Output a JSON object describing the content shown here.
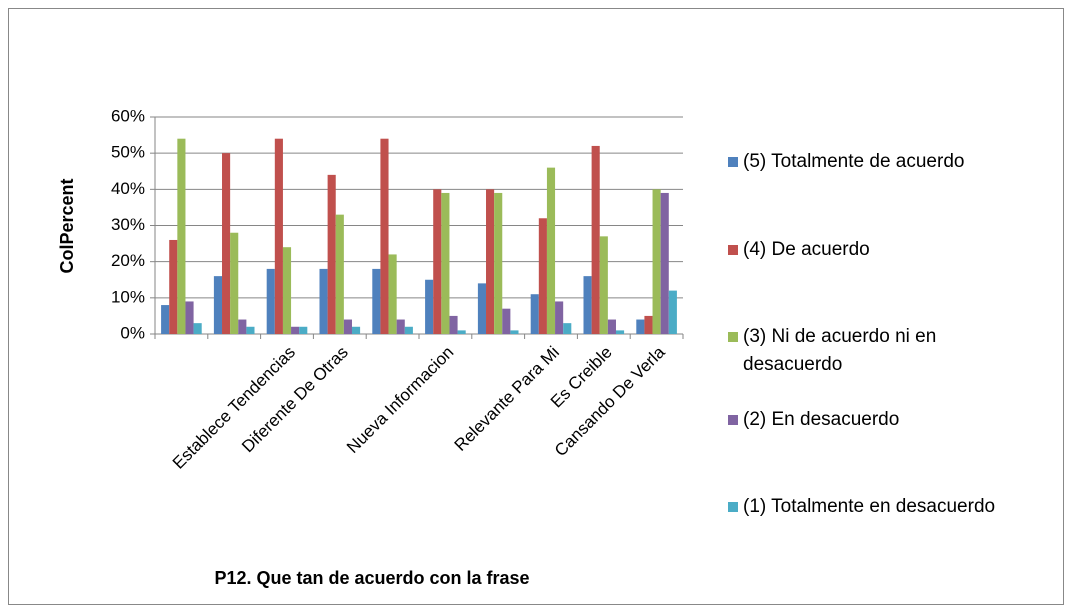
{
  "chart_data": {
    "type": "bar",
    "x_label": "P12. Que tan de acuerdo con la frase",
    "y_label": "ColPercent",
    "categories": [
      null,
      null,
      "Establece Tendencias",
      "Diferente De Otras",
      null,
      "Nueva Informacion",
      null,
      "Relevante Para Mi",
      "Es Creible",
      "Cansando De Verla"
    ],
    "series": [
      {
        "name": "(5) Totalmente de acuerdo",
        "color": "#4f81bd",
        "values": [
          8,
          16,
          18,
          18,
          18,
          15,
          14,
          11,
          16,
          4
        ]
      },
      {
        "name": "(4) De acuerdo",
        "color": "#c0504d",
        "values": [
          26,
          50,
          54,
          44,
          54,
          40,
          40,
          32,
          52,
          5
        ]
      },
      {
        "name": "(3) Ni de acuerdo ni en desacuerdo",
        "color": "#9bbb59",
        "values": [
          54,
          28,
          24,
          33,
          22,
          39,
          39,
          46,
          27,
          40
        ]
      },
      {
        "name": "(2) En desacuerdo",
        "color": "#8064a2",
        "values": [
          9,
          4,
          2,
          4,
          4,
          5,
          7,
          9,
          4,
          39
        ]
      },
      {
        "name": "(1) Totalmente en desacuerdo",
        "color": "#4bacc6",
        "values": [
          3,
          2,
          2,
          2,
          2,
          1,
          1,
          3,
          1,
          12
        ]
      }
    ],
    "ylim": [
      0,
      60
    ],
    "yticks": [
      {
        "value": 0,
        "label": "0%"
      },
      {
        "value": 10,
        "label": "10%"
      },
      {
        "value": 20,
        "label": "20%"
      },
      {
        "value": 30,
        "label": "30%"
      },
      {
        "value": 40,
        "label": "40%"
      },
      {
        "value": 50,
        "label": "50%"
      },
      {
        "value": 60,
        "label": "60%"
      }
    ],
    "grid": true,
    "legend": "right"
  }
}
